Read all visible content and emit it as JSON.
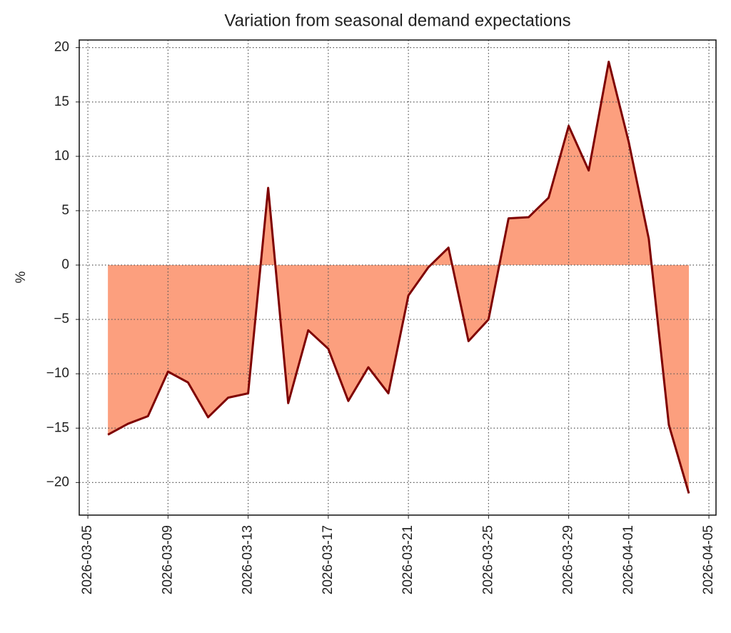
{
  "chart_data": {
    "type": "area",
    "title": "Variation from seasonal demand expectations",
    "y_label": "%",
    "x": [
      "2026-03-06",
      "2026-03-07",
      "2026-03-08",
      "2026-03-09",
      "2026-03-10",
      "2026-03-11",
      "2026-03-12",
      "2026-03-13",
      "2026-03-14",
      "2026-03-15",
      "2026-03-16",
      "2026-03-17",
      "2026-03-18",
      "2026-03-19",
      "2026-03-20",
      "2026-03-21",
      "2026-03-22",
      "2026-03-23",
      "2026-03-24",
      "2026-03-25",
      "2026-03-26",
      "2026-03-27",
      "2026-03-28",
      "2026-03-29",
      "2026-03-30",
      "2026-03-31",
      "2026-04-01",
      "2026-04-02",
      "2026-04-03",
      "2026-04-04"
    ],
    "values": [
      -15.6,
      -14.6,
      -13.9,
      -9.8,
      -10.8,
      -14.0,
      -12.2,
      -11.8,
      7.1,
      -12.7,
      -6.0,
      -7.7,
      -12.5,
      -9.4,
      -11.8,
      -2.8,
      -0.2,
      1.6,
      -7.0,
      -5.0,
      4.3,
      4.4,
      6.2,
      12.8,
      8.7,
      18.7,
      11.3,
      2.4,
      -14.7,
      -21.0
    ],
    "line_color": "#7f0000",
    "fill_color": "#fc9f7e",
    "xlim": [
      "2026-03-04T13:40",
      "2026-04-05T08:30"
    ],
    "xticks": [
      "2026-03-05",
      "2026-03-09",
      "2026-03-13",
      "2026-03-17",
      "2026-03-21",
      "2026-03-25",
      "2026-03-29",
      "2026-04-01",
      "2026-04-05"
    ],
    "ylim": [
      -23,
      20.7
    ],
    "yticks": [
      {
        "value": -20,
        "label": "−20"
      },
      {
        "value": -15,
        "label": "−15"
      },
      {
        "value": -10,
        "label": "−10"
      },
      {
        "value": -5,
        "label": "−5"
      },
      0,
      5,
      10,
      15,
      20
    ],
    "grid": true
  }
}
